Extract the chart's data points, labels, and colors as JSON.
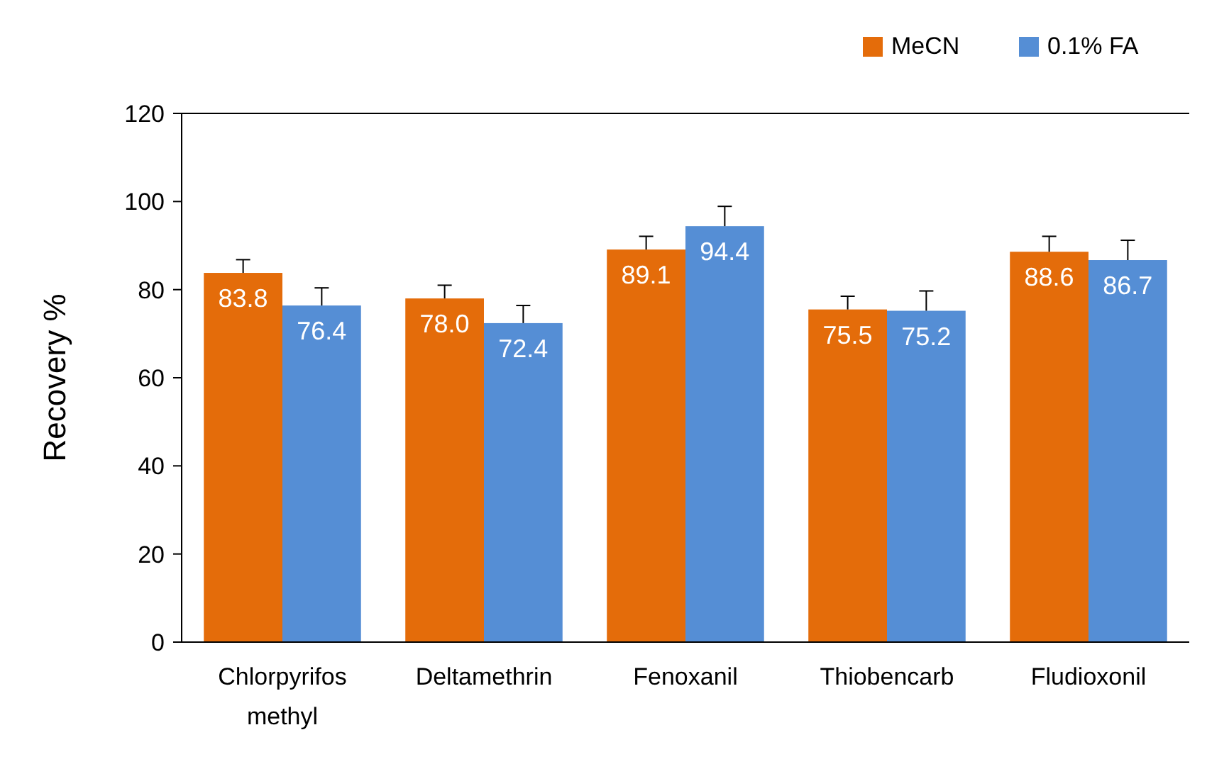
{
  "chart_data": {
    "type": "bar",
    "ylabel": "Recovery %",
    "categories": [
      "Chlorpyrifos methyl",
      "Deltamethrin",
      "Fenoxanil",
      "Thiobencarb",
      "Fludioxonil"
    ],
    "series": [
      {
        "name": "MeCN",
        "color": "#e46c0a",
        "values": [
          83.8,
          78.0,
          89.1,
          75.5,
          88.6
        ],
        "value_labels": [
          "83.8",
          "78.0",
          "89.1",
          "75.5",
          "88.6"
        ],
        "errors": [
          3,
          3,
          3,
          3,
          3.5
        ]
      },
      {
        "name": "0.1% FA",
        "color": "#558ed5",
        "values": [
          76.4,
          72.4,
          94.4,
          75.2,
          86.7
        ],
        "value_labels": [
          "76.4",
          "72.4",
          "94.4",
          "75.2",
          "86.7"
        ],
        "errors": [
          4,
          4,
          4.5,
          4.5,
          4.5
        ]
      }
    ],
    "ylim": [
      0,
      120
    ],
    "yticks": [
      0,
      20,
      40,
      60,
      80,
      100,
      120
    ],
    "grid": false,
    "legend": "top right"
  }
}
